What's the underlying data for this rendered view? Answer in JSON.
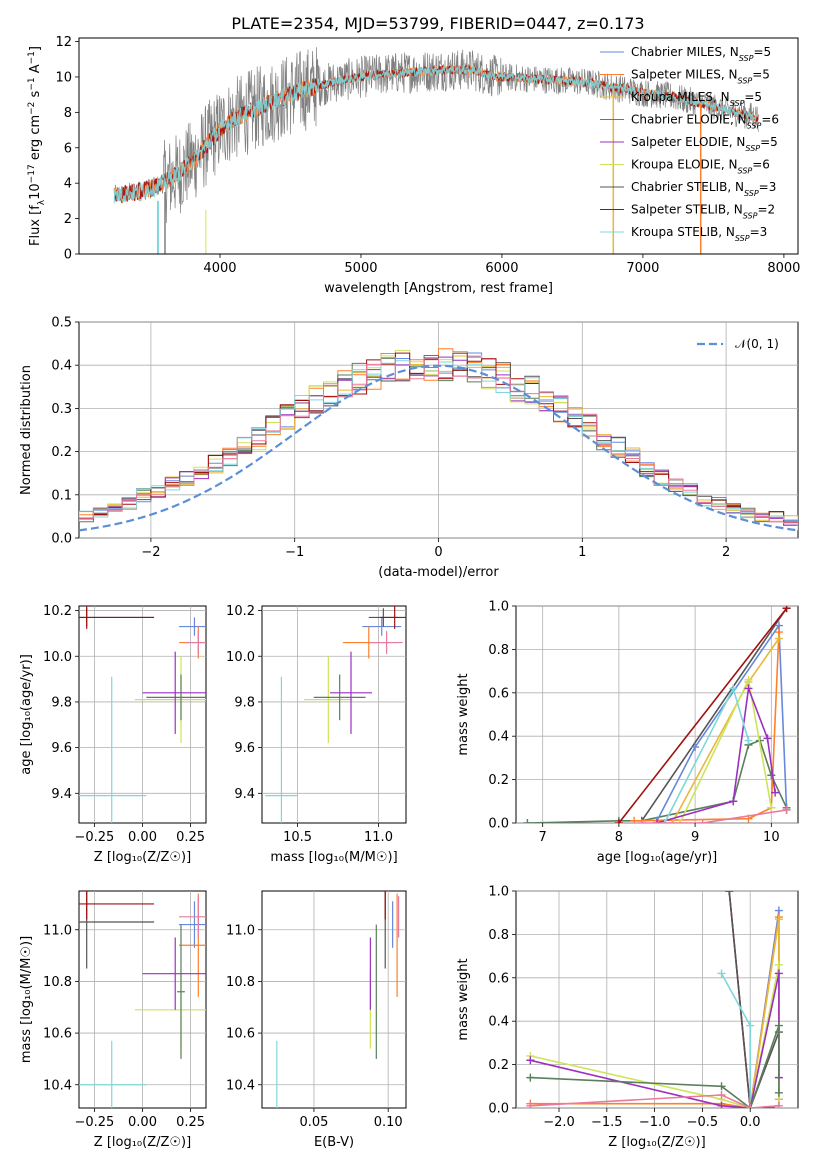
{
  "figure": {
    "title": "PLATE=2354, MJD=53799, FIBERID=0447, z=0.173"
  },
  "colors": {
    "chabrier_miles": "#6688dd",
    "salpeter_miles": "#ff7f2a",
    "kroupa_miles": "#e8b838",
    "chabrier_elodie": "#5a7f5a",
    "salpeter_elodie": "#9b30c0",
    "kroupa_elodie": "#cfe35a",
    "chabrier_stelib": "#555555",
    "salpeter_stelib": "#a01010",
    "kroupa_stelib": "#7fd7dc",
    "pink": "#e87a9f",
    "normal_curve": "#5b8fd8",
    "data_line": "#808080"
  },
  "chart_data": [
    {
      "id": "spectrum",
      "type": "line",
      "xlabel": "wavelength [Angstrom, rest frame]",
      "ylabel_parts": [
        "Flux [f",
        "λ",
        "10",
        "−17",
        " erg cm",
        "−2",
        " s",
        "−1",
        " A",
        "−1",
        "]"
      ],
      "xlim": [
        3000,
        8100
      ],
      "ylim": [
        0,
        12.2
      ],
      "xticks": [
        4000,
        5000,
        6000,
        7000,
        8000
      ],
      "yticks": [
        0,
        2,
        4,
        6,
        8,
        10,
        12
      ],
      "grid": false,
      "legend_position": "top-right",
      "legend": [
        {
          "name": "Chabrier MILES, N",
          "sub": "SSP",
          "suffix": "=5",
          "color_key": "chabrier_miles"
        },
        {
          "name": "Salpeter MILES, N",
          "sub": "SSP",
          "suffix": "=5",
          "color_key": "salpeter_miles"
        },
        {
          "name": "Kroupa MILES, N",
          "sub": "SSP",
          "suffix": "=5",
          "color_key": "kroupa_miles"
        },
        {
          "name": "Chabrier ELODIE, N",
          "sub": "SSP",
          "suffix": "=6",
          "color_key": "chabrier_elodie"
        },
        {
          "name": "Salpeter ELODIE, N",
          "sub": "SSP",
          "suffix": "=5",
          "color_key": "salpeter_elodie"
        },
        {
          "name": "Kroupa ELODIE, N",
          "sub": "SSP",
          "suffix": "=6",
          "color_key": "kroupa_elodie"
        },
        {
          "name": "Chabrier STELIB, N",
          "sub": "SSP",
          "suffix": "=3",
          "color_key": "chabrier_stelib"
        },
        {
          "name": "Salpeter STELIB, N",
          "sub": "SSP",
          "suffix": "=2",
          "color_key": "salpeter_stelib"
        },
        {
          "name": "Kroupa STELIB, N",
          "sub": "SSP",
          "suffix": "=3",
          "color_key": "kroupa_stelib"
        }
      ],
      "continuum": [
        [
          3250,
          3.3
        ],
        [
          3400,
          3.5
        ],
        [
          3550,
          3.8
        ],
        [
          3700,
          4.5
        ],
        [
          3850,
          5.6
        ],
        [
          3950,
          6.6
        ],
        [
          4050,
          7.4
        ],
        [
          4200,
          8.0
        ],
        [
          4400,
          8.7
        ],
        [
          4600,
          9.3
        ],
        [
          4800,
          9.7
        ],
        [
          5000,
          10.0
        ],
        [
          5200,
          10.2
        ],
        [
          5400,
          10.3
        ],
        [
          5600,
          10.4
        ],
        [
          5800,
          10.4
        ],
        [
          5900,
          10.1
        ],
        [
          6000,
          10.0
        ],
        [
          6200,
          9.9
        ],
        [
          6400,
          9.8
        ],
        [
          6600,
          9.7
        ],
        [
          6800,
          9.4
        ],
        [
          7000,
          9.1
        ],
        [
          7200,
          8.9
        ],
        [
          7400,
          8.5
        ],
        [
          7600,
          8.1
        ],
        [
          7820,
          7.7
        ]
      ],
      "x_range": [
        3250,
        7820
      ]
    },
    {
      "id": "residuals",
      "type": "histogram",
      "xlabel": "(data-model)/error",
      "ylabel": "Normed distribution",
      "xlim": [
        -2.5,
        2.5
      ],
      "ylim": [
        0,
        0.5
      ],
      "xticks": [
        -2,
        -1,
        0,
        1,
        2
      ],
      "xtick_labels": [
        "−2",
        "−1",
        "0",
        "1",
        "2"
      ],
      "yticks": [
        0.0,
        0.1,
        0.2,
        0.3,
        0.4,
        0.5
      ],
      "ytick_labels": [
        "0.0",
        "0.1",
        "0.2",
        "0.3",
        "0.4",
        "0.5"
      ],
      "grid": true,
      "bin_width": 0.1,
      "legend_label": "𝒩(0, 1)",
      "legend_position": "top-right",
      "mean_hist": [
        0.02,
        0.03,
        0.03,
        0.04,
        0.05,
        0.05,
        0.06,
        0.07,
        0.08,
        0.1,
        0.11,
        0.13,
        0.14,
        0.15,
        0.17,
        0.19,
        0.21,
        0.23,
        0.26,
        0.28,
        0.3,
        0.32,
        0.34,
        0.36,
        0.37,
        0.38,
        0.39,
        0.4,
        0.4,
        0.4,
        0.4,
        0.4,
        0.39,
        0.38,
        0.37,
        0.35,
        0.34,
        0.32,
        0.3,
        0.28,
        0.26,
        0.23,
        0.21,
        0.19,
        0.16,
        0.14,
        0.12,
        0.11,
        0.09,
        0.08,
        0.07,
        0.06,
        0.05,
        0.05,
        0.04,
        0.03,
        0.03,
        0.03,
        0.02,
        0.02
      ]
    },
    {
      "id": "age_vs_Z",
      "type": "scatter",
      "xlabel": "Z [log₁₀(Z/Z☉)]",
      "ylabel": "age  [log₁₀(age/yr)]",
      "xlim": [
        -0.33,
        0.33
      ],
      "ylim": [
        9.27,
        10.22
      ],
      "xticks": [
        -0.25,
        0.0,
        0.25
      ],
      "xtick_labels": [
        "−0.25",
        "0.00",
        "0.25"
      ],
      "yticks": [
        9.4,
        9.6,
        9.8,
        10.0,
        10.2
      ],
      "ytick_labels": [
        "9.4",
        "9.6",
        "9.8",
        "10.0",
        "10.2"
      ],
      "grid": true,
      "points": [
        {
          "x": 0.27,
          "y": 10.13,
          "xerr": 0.08,
          "yerr": 0.04,
          "color_key": "chabrier_miles"
        },
        {
          "x": 0.29,
          "y": 10.06,
          "xerr": 0.1,
          "yerr": 0.07,
          "color_key": "salpeter_miles"
        },
        {
          "x": 0.29,
          "y": 10.06,
          "xerr": 0.07,
          "yerr": 0.05,
          "color_key": "pink"
        },
        {
          "x": 0.2,
          "y": 9.81,
          "xerr": 0.24,
          "yerr": 0.19,
          "color_key": "kroupa_elodie"
        },
        {
          "x": 0.2,
          "y": 9.82,
          "xerr": 0.18,
          "yerr": 0.1,
          "color_key": "chabrier_elodie"
        },
        {
          "x": 0.17,
          "y": 9.84,
          "xerr": 0.17,
          "yerr": 0.18,
          "color_key": "salpeter_elodie"
        },
        {
          "x": -0.29,
          "y": 10.17,
          "xerr": 0.35,
          "yerr": 0.04,
          "color_key": "chabrier_stelib"
        },
        {
          "x": -0.29,
          "y": 10.17,
          "xerr": 0.35,
          "yerr": 0.05,
          "color_key": "salpeter_stelib"
        },
        {
          "x": -0.16,
          "y": 9.39,
          "xerr": 0.18,
          "yerr": 0.52,
          "color_key": "kroupa_stelib"
        }
      ]
    },
    {
      "id": "age_vs_mass",
      "type": "scatter",
      "xlabel": "mass [log₁₀(M/M☉)]",
      "ylabel": "",
      "xlim": [
        10.28,
        11.17
      ],
      "ylim": [
        9.27,
        10.22
      ],
      "xticks": [
        10.5,
        11.0
      ],
      "xtick_labels": [
        "10.5",
        "11.0"
      ],
      "yticks": [
        9.4,
        9.6,
        9.8,
        10.0,
        10.2
      ],
      "ytick_labels": [
        "9.4",
        "9.6",
        "9.8",
        "10.0",
        "10.2"
      ],
      "grid": true,
      "points": [
        {
          "x": 11.02,
          "y": 10.13,
          "xerr": 0.12,
          "yerr": 0.04,
          "color_key": "chabrier_miles"
        },
        {
          "x": 10.94,
          "y": 10.06,
          "xerr": 0.16,
          "yerr": 0.07,
          "color_key": "salpeter_miles"
        },
        {
          "x": 11.05,
          "y": 10.06,
          "xerr": 0.1,
          "yerr": 0.05,
          "color_key": "pink"
        },
        {
          "x": 10.69,
          "y": 9.81,
          "xerr": 0.15,
          "yerr": 0.19,
          "color_key": "kroupa_elodie"
        },
        {
          "x": 10.76,
          "y": 9.82,
          "xerr": 0.16,
          "yerr": 0.1,
          "color_key": "chabrier_elodie"
        },
        {
          "x": 10.83,
          "y": 9.84,
          "xerr": 0.13,
          "yerr": 0.18,
          "color_key": "salpeter_elodie"
        },
        {
          "x": 11.03,
          "y": 10.17,
          "xerr": 0.09,
          "yerr": 0.04,
          "color_key": "chabrier_stelib"
        },
        {
          "x": 11.1,
          "y": 10.17,
          "xerr": 0.09,
          "yerr": 0.05,
          "color_key": "salpeter_stelib"
        },
        {
          "x": 10.4,
          "y": 9.39,
          "xerr": 0.1,
          "yerr": 0.52,
          "color_key": "kroupa_stelib"
        }
      ]
    },
    {
      "id": "mass_weight_vs_age",
      "type": "line",
      "xlabel": "age  [log₁₀(age/yr)]",
      "ylabel": "mass weight",
      "xlim": [
        6.65,
        10.35
      ],
      "ylim": [
        0.0,
        1.0
      ],
      "xticks": [
        7,
        8,
        9,
        10
      ],
      "xtick_labels": [
        "7",
        "8",
        "9",
        "10"
      ],
      "yticks": [
        0.0,
        0.2,
        0.4,
        0.6,
        0.8,
        1.0
      ],
      "ytick_labels": [
        "0.0",
        "0.2",
        "0.4",
        "0.6",
        "0.8",
        "1.0"
      ],
      "grid": true,
      "series": [
        {
          "color_key": "chabrier_elodie",
          "x": [
            6.8,
            8.0,
            8.3,
            9.5,
            9.7,
            9.85,
            10.0,
            10.2
          ],
          "y": [
            0.0,
            0.01,
            0.01,
            0.1,
            0.36,
            0.38,
            0.22,
            0.07
          ]
        },
        {
          "color_key": "chabrier_stelib",
          "x": [
            8.3,
            10.2
          ],
          "y": [
            0.01,
            0.99
          ]
        },
        {
          "color_key": "salpeter_stelib",
          "x": [
            8.0,
            10.2
          ],
          "y": [
            0.0,
            0.99
          ]
        },
        {
          "color_key": "chabrier_miles",
          "x": [
            8.5,
            9.0,
            10.1,
            10.2
          ],
          "y": [
            0.01,
            0.35,
            0.91,
            0.06
          ]
        },
        {
          "color_key": "salpeter_miles",
          "x": [
            8.2,
            9.7,
            10.0,
            10.1
          ],
          "y": [
            0.01,
            0.02,
            0.07,
            0.88
          ]
        },
        {
          "color_key": "kroupa_miles",
          "x": [
            8.7,
            9.7,
            10.1
          ],
          "y": [
            0.0,
            0.65,
            0.85
          ]
        },
        {
          "color_key": "kroupa_elodie",
          "x": [
            8.8,
            9.7,
            10.0
          ],
          "y": [
            0.0,
            0.66,
            0.07
          ]
        },
        {
          "color_key": "salpeter_elodie",
          "x": [
            8.5,
            9.5,
            9.7,
            9.95,
            10.05
          ],
          "y": [
            0.0,
            0.1,
            0.62,
            0.39,
            0.14
          ]
        },
        {
          "color_key": "kroupa_stelib",
          "x": [
            8.6,
            9.5,
            9.7
          ],
          "y": [
            0.0,
            0.62,
            0.38
          ]
        },
        {
          "color_key": "pink",
          "x": [
            8.3,
            9.1,
            10.2
          ],
          "y": [
            0.0,
            0.0,
            0.06
          ]
        }
      ]
    },
    {
      "id": "mass_vs_Z",
      "type": "scatter",
      "xlabel": "Z [log₁₀(Z/Z☉)]",
      "ylabel": "mass [log₁₀(M/M☉)]",
      "xlim": [
        -0.33,
        0.33
      ],
      "ylim": [
        10.31,
        11.15
      ],
      "xticks": [
        -0.25,
        0.0,
        0.25
      ],
      "xtick_labels": [
        "−0.25",
        "0.00",
        "0.25"
      ],
      "yticks": [
        10.4,
        10.6,
        10.8,
        11.0
      ],
      "ytick_labels": [
        "10.4",
        "10.6",
        "10.8",
        "11.0"
      ],
      "grid": true,
      "points": [
        {
          "x": 0.27,
          "y": 11.02,
          "xerr": 0.08,
          "yerr": 0.09,
          "color_key": "chabrier_miles"
        },
        {
          "x": 0.29,
          "y": 10.94,
          "xerr": 0.1,
          "yerr": 0.2,
          "color_key": "salpeter_miles"
        },
        {
          "x": 0.29,
          "y": 11.05,
          "xerr": 0.1,
          "yerr": 0.08,
          "color_key": "pink"
        },
        {
          "x": 0.2,
          "y": 10.69,
          "xerr": 0.24,
          "yerr": 0.15,
          "color_key": "kroupa_elodie"
        },
        {
          "x": 0.2,
          "y": 10.76,
          "xerr": 0.02,
          "yerr": 0.26,
          "color_key": "chabrier_elodie"
        },
        {
          "x": 0.17,
          "y": 10.83,
          "xerr": 0.17,
          "yerr": 0.14,
          "color_key": "salpeter_elodie"
        },
        {
          "x": -0.29,
          "y": 11.03,
          "xerr": 0.35,
          "yerr": 0.18,
          "color_key": "chabrier_stelib"
        },
        {
          "x": -0.29,
          "y": 11.1,
          "xerr": 0.35,
          "yerr": 0.06,
          "color_key": "salpeter_stelib"
        },
        {
          "x": -0.16,
          "y": 10.4,
          "xerr": 0.18,
          "yerr": 0.17,
          "color_key": "kroupa_stelib"
        }
      ]
    },
    {
      "id": "mass_vs_ebv",
      "type": "scatter",
      "xlabel": "E(B-V)",
      "ylabel": "",
      "xlim": [
        0.015,
        0.112
      ],
      "ylim": [
        10.31,
        11.15
      ],
      "xticks": [
        0.05,
        0.1
      ],
      "xtick_labels": [
        "0.05",
        "0.10"
      ],
      "yticks": [
        10.4,
        10.6,
        10.8,
        11.0
      ],
      "ytick_labels": [
        "10.4",
        "10.6",
        "10.8",
        "11.0"
      ],
      "grid": true,
      "points": [
        {
          "x": 0.103,
          "y": 11.02,
          "xerr": 0,
          "yerr": 0.09,
          "color_key": "chabrier_miles"
        },
        {
          "x": 0.106,
          "y": 10.94,
          "xerr": 0,
          "yerr": 0.2,
          "color_key": "salpeter_miles"
        },
        {
          "x": 0.107,
          "y": 11.05,
          "xerr": 0,
          "yerr": 0.08,
          "color_key": "pink"
        },
        {
          "x": 0.088,
          "y": 10.69,
          "xerr": 0,
          "yerr": 0.15,
          "color_key": "kroupa_elodie"
        },
        {
          "x": 0.092,
          "y": 10.76,
          "xerr": 0,
          "yerr": 0.26,
          "color_key": "chabrier_elodie"
        },
        {
          "x": 0.088,
          "y": 10.83,
          "xerr": 0,
          "yerr": 0.14,
          "color_key": "salpeter_elodie"
        },
        {
          "x": 0.098,
          "y": 11.03,
          "xerr": 0,
          "yerr": 0.18,
          "color_key": "chabrier_stelib"
        },
        {
          "x": 0.098,
          "y": 11.1,
          "xerr": 0,
          "yerr": 0.06,
          "color_key": "salpeter_stelib"
        },
        {
          "x": 0.025,
          "y": 10.4,
          "xerr": 0,
          "yerr": 0.17,
          "color_key": "kroupa_stelib"
        }
      ]
    },
    {
      "id": "mass_weight_vs_Z",
      "type": "line",
      "xlabel": "Z [log₁₀(Z/Z☉)]",
      "ylabel": "mass weight",
      "xlim": [
        -2.45,
        0.5
      ],
      "ylim": [
        0.0,
        1.0
      ],
      "xticks": [
        -2.0,
        -1.5,
        -1.0,
        -0.5,
        0.0
      ],
      "xtick_labels": [
        "−2.0",
        "−1.5",
        "−1.0",
        "−0.5",
        "0.0"
      ],
      "yticks": [
        0.0,
        0.2,
        0.4,
        0.6,
        0.8,
        1.0
      ],
      "ytick_labels": [
        "0.0",
        "0.2",
        "0.4",
        "0.6",
        "0.8",
        "1.0"
      ],
      "grid": true,
      "series": [
        {
          "color_key": "salpeter_stelib",
          "x": [
            -0.22,
            0.0,
            0.3
          ],
          "y": [
            1.0,
            0.0,
            0.0
          ]
        },
        {
          "color_key": "chabrier_stelib",
          "x": [
            -0.22,
            0.0,
            0.3
          ],
          "y": [
            1.0,
            0.0,
            0.35
          ]
        },
        {
          "color_key": "kroupa_stelib",
          "x": [
            -0.3,
            0.0,
            0.0
          ],
          "y": [
            0.62,
            0.38,
            0.0
          ]
        },
        {
          "color_key": "chabrier_miles",
          "x": [
            0.0,
            0.3,
            0.3
          ],
          "y": [
            0.0,
            0.91,
            0.04
          ]
        },
        {
          "color_key": "salpeter_miles",
          "x": [
            -2.3,
            -0.3,
            0.0,
            0.3,
            0.3
          ],
          "y": [
            0.02,
            0.02,
            0.0,
            0.88,
            0.0
          ]
        },
        {
          "color_key": "kroupa_miles",
          "x": [
            0.0,
            0.3,
            0.3
          ],
          "y": [
            0.0,
            0.87,
            0.04
          ]
        },
        {
          "color_key": "kroupa_elodie",
          "x": [
            -2.3,
            -0.3,
            0.0,
            0.3,
            0.3
          ],
          "y": [
            0.24,
            0.04,
            0.0,
            0.66,
            0.0
          ]
        },
        {
          "color_key": "salpeter_elodie",
          "x": [
            -2.3,
            -0.3,
            0.0,
            0.3,
            0.3
          ],
          "y": [
            0.22,
            0.01,
            0.0,
            0.62,
            0.14
          ]
        },
        {
          "color_key": "chabrier_elodie",
          "x": [
            -2.3,
            -0.3,
            0.0,
            0.3,
            0.3
          ],
          "y": [
            0.14,
            0.1,
            0.0,
            0.38,
            0.07
          ]
        },
        {
          "color_key": "pink",
          "x": [
            -2.3,
            -0.3,
            0.0,
            0.3
          ],
          "y": [
            0.01,
            0.06,
            0.0,
            0.01
          ]
        }
      ]
    }
  ]
}
